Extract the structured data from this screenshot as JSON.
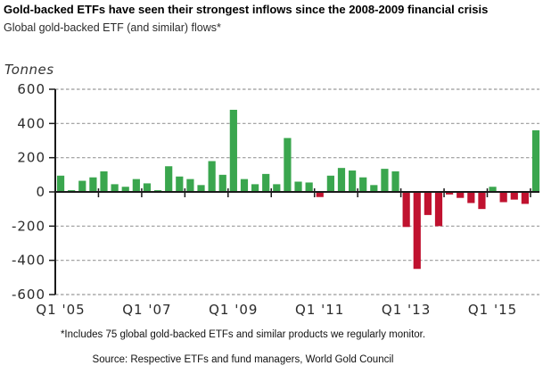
{
  "header": {
    "title": "Gold-backed ETFs have seen their strongest inflows since the 2008-2009 financial crisis",
    "subtitle": "Global gold-backed ETF (and similar) flows*"
  },
  "chart_data": {
    "type": "bar",
    "title": "Global gold-backed ETF (and similar) flows",
    "ylabel": "Tonnes",
    "xlabel": "",
    "ylim": [
      -600,
      600
    ],
    "ytick_step": 200,
    "grid": "horizontal dashed, solid zero line",
    "legend": "none",
    "x": [
      "Q1 2005",
      "Q2 2005",
      "Q3 2005",
      "Q4 2005",
      "Q1 2006",
      "Q2 2006",
      "Q3 2006",
      "Q4 2006",
      "Q1 2007",
      "Q2 2007",
      "Q3 2007",
      "Q4 2007",
      "Q1 2008",
      "Q2 2008",
      "Q3 2008",
      "Q4 2008",
      "Q1 2009",
      "Q2 2009",
      "Q3 2009",
      "Q4 2009",
      "Q1 2010",
      "Q2 2010",
      "Q3 2010",
      "Q4 2010",
      "Q1 2011",
      "Q2 2011",
      "Q3 2011",
      "Q4 2011",
      "Q1 2012",
      "Q2 2012",
      "Q3 2012",
      "Q4 2012",
      "Q1 2013",
      "Q2 2013",
      "Q3 2013",
      "Q4 2013",
      "Q1 2014",
      "Q2 2014",
      "Q3 2014",
      "Q4 2014",
      "Q1 2015",
      "Q2 2015",
      "Q3 2015",
      "Q4 2015",
      "Q1 2016"
    ],
    "values": [
      95,
      10,
      65,
      85,
      120,
      45,
      30,
      75,
      50,
      10,
      150,
      90,
      75,
      40,
      180,
      100,
      480,
      75,
      45,
      105,
      45,
      315,
      60,
      55,
      -30,
      95,
      140,
      125,
      85,
      40,
      135,
      120,
      -205,
      -450,
      -135,
      -200,
      -15,
      -35,
      -65,
      -100,
      30,
      -60,
      -45,
      -70,
      360
    ],
    "xtick_labels": [
      "Q1 '05",
      "Q1 '07",
      "Q1 '09",
      "Q1 '11",
      "Q1 '13",
      "Q1 '15"
    ],
    "xtick_positions": [
      0,
      8,
      16,
      24,
      32,
      40
    ],
    "colors": {
      "positive": "#3aa64e",
      "negative": "#c0122f",
      "grid": "#999999",
      "axis": "#1a1a1a"
    }
  },
  "footer": {
    "footnote": "*Includes 75 global gold-backed ETFs and similar products we regularly monitor.",
    "source": "Source: Respective ETFs and fund managers, World Gold Council"
  }
}
